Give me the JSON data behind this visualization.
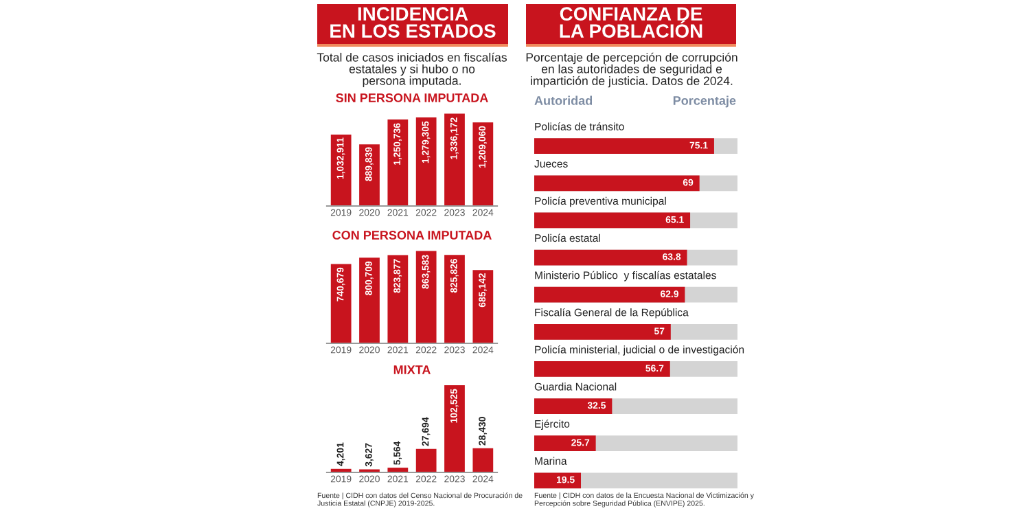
{
  "chart_data": [
    {
      "type": "bar",
      "title": "INCIDENCIA\nEN LOS ESTADOS",
      "subtitle": "Total de casos iniciados en fiscalías\nestatales y si hubo o no\npersona imputada.",
      "annotations": [
        "SIN PERSONA IMPUTADA"
      ],
      "categories": [
        "2019",
        "2020",
        "2021",
        "2022",
        "2023",
        "2024"
      ],
      "values": [
        1032911,
        889839,
        1250736,
        1279305,
        1336172,
        1209060
      ],
      "value_labels": [
        "1,032,911",
        "889,839",
        "1,250,736",
        "1,279,305",
        "1,336,172",
        "1,209,060"
      ],
      "color": "#c8141e"
    },
    {
      "type": "bar",
      "title": "CON PERSONA IMPUTADA",
      "categories": [
        "2019",
        "2020",
        "2021",
        "2022",
        "2023",
        "2024"
      ],
      "values": [
        740679,
        800709,
        823877,
        863583,
        825826,
        685142
      ],
      "value_labels": [
        "740,679",
        "800,709",
        "823,877",
        "863,583",
        "825,826",
        "685,142"
      ],
      "color": "#c8141e"
    },
    {
      "type": "bar",
      "title": "MIXTA",
      "annotations": [
        "Fuente | CIDH con datos del Censo Nacional de Procuración de\nJusticia Estatal (CNPJE) 2019-2025."
      ],
      "categories": [
        "2019",
        "2020",
        "2021",
        "2022",
        "2023",
        "2024"
      ],
      "values": [
        4201,
        3627,
        5564,
        27694,
        102525,
        28430
      ],
      "value_labels": [
        "4,201",
        "3,627",
        "5,564",
        "27,694",
        "102,525",
        "28,430"
      ],
      "color": "#c8141e"
    },
    {
      "type": "bar",
      "orientation": "horizontal",
      "title": "CONFIANZA DE\nLA POBLACIÓN",
      "subtitle": "Porcentaje de percepción de corrupción\nen las autoridades de seguridad e\nimpartición de justicia. Datos de 2024.",
      "ylabel": "Autoridad",
      "xlabel": "Porcentaje",
      "annotations": [
        "Fuente | CIDH con datos de la Encuesta Nacional de Victimización y\nPercepción sobre Seguridad Pública (ENVIPE) 2025."
      ],
      "categories": [
        "Policías de tránsito",
        "Jueces",
        "Policía preventiva municipal",
        "Policía estatal",
        "Ministerio Público  y fiscalías estatales",
        "Fiscalía General de la República",
        "Policía ministerial, judicial o de investigación",
        "Guardia Nacional",
        "Ejército",
        "Marina"
      ],
      "values": [
        75.1,
        69,
        65.1,
        63.8,
        62.9,
        57,
        56.7,
        32.5,
        25.7,
        19.5
      ],
      "color": "#c8141e",
      "data_labels": true
    }
  ]
}
